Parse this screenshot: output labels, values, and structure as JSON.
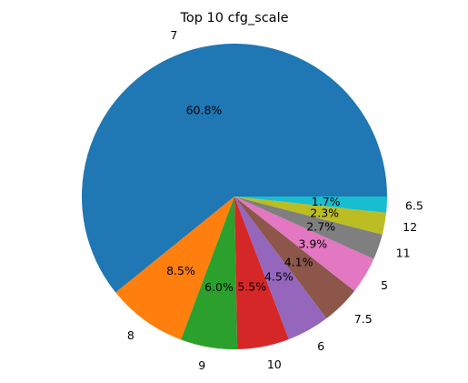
{
  "chart_data": {
    "type": "pie",
    "title": "Top 10 cfg_scale",
    "categories": [
      "7",
      "8",
      "9",
      "10",
      "6",
      "7.5",
      "5",
      "11",
      "12",
      "6.5"
    ],
    "values": [
      60.8,
      8.5,
      6.0,
      5.5,
      4.5,
      4.1,
      3.9,
      2.7,
      2.3,
      1.7
    ],
    "percent_labels": [
      "60.8%",
      "8.5%",
      "6.0%",
      "5.5%",
      "4.5%",
      "4.1%",
      "3.9%",
      "2.7%",
      "2.3%",
      "1.7%"
    ],
    "colors": [
      "#1f77b4",
      "#ff7f0e",
      "#2ca02c",
      "#d62728",
      "#9467bd",
      "#8c564b",
      "#e377c2",
      "#7f7f7f",
      "#bcbd22",
      "#17becf"
    ],
    "start_angle_deg": 0,
    "direction": "counterclockwise",
    "legend": "none"
  }
}
